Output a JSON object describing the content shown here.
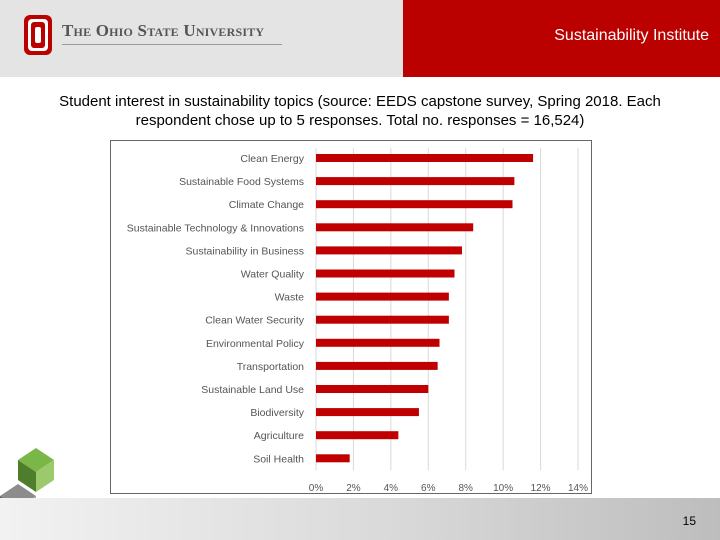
{
  "header": {
    "logo_letter": "O",
    "university": "The Ohio State University",
    "institute": "Sustainability Institute"
  },
  "caption": "Student interest in sustainability topics (source: EEDS capstone survey, Spring 2018. Each respondent chose up to 5 responses. Total no. responses = 16,524)",
  "colors": {
    "bar": "#c00000",
    "brand_red": "#bb0000",
    "grid": "#d9d9d9"
  },
  "chart_data": {
    "type": "bar",
    "orientation": "horizontal",
    "categories": [
      "Clean Energy",
      "Sustainable Food Systems",
      "Climate Change",
      "Sustainable Technology & Innovations",
      "Sustainability in Business",
      "Water Quality",
      "Waste",
      "Clean Water Security",
      "Environmental Policy",
      "Transportation",
      "Sustainable Land Use",
      "Biodiversity",
      "Agriculture",
      "Soil Health"
    ],
    "values": [
      11.6,
      10.6,
      10.5,
      8.4,
      7.8,
      7.4,
      7.1,
      7.1,
      6.6,
      6.5,
      6.0,
      5.5,
      4.4,
      1.8
    ],
    "xlim": [
      0,
      14
    ],
    "xticks": [
      0,
      2,
      4,
      6,
      8,
      10,
      12,
      14
    ],
    "xtick_labels": [
      "0%",
      "2%",
      "4%",
      "6%",
      "8%",
      "10%",
      "12%",
      "14%"
    ],
    "grid": true,
    "title": "",
    "xlabel": "",
    "ylabel": ""
  },
  "footer": {
    "page_number": "15"
  }
}
